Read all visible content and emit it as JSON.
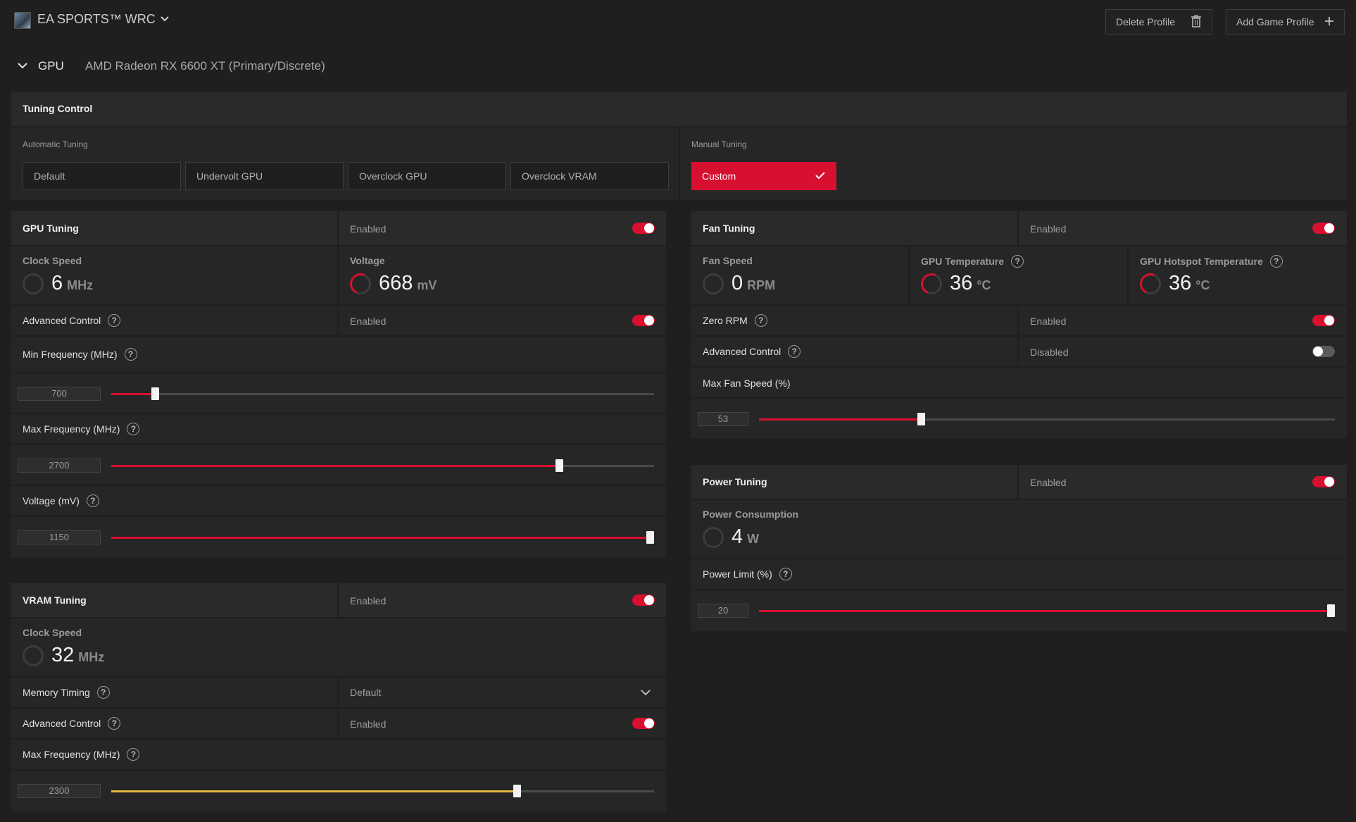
{
  "header": {
    "game_title": "EA SPORTS™ WRC",
    "delete_profile": "Delete Profile",
    "add_game_profile": "Add Game Profile",
    "gpu_label": "GPU",
    "gpu_name": "AMD Radeon RX 6600 XT (Primary/Discrete)"
  },
  "tuning_control": {
    "title": "Tuning Control",
    "automatic_label": "Automatic Tuning",
    "manual_label": "Manual Tuning",
    "presets": [
      "Default",
      "Undervolt GPU",
      "Overclock GPU",
      "Overclock VRAM"
    ],
    "custom": "Custom"
  },
  "gpu_tuning": {
    "title": "GPU Tuning",
    "state": "Enabled",
    "clock_title": "Clock Speed",
    "clock_value": "6",
    "clock_unit": "MHz",
    "voltage_title": "Voltage",
    "voltage_value": "668",
    "voltage_unit": "mV",
    "advanced_label": "Advanced Control",
    "advanced_state": "Enabled",
    "min_freq_label": "Min Frequency (MHz)",
    "min_freq_value": "700",
    "min_freq_fraction": 0.08,
    "max_freq_label": "Max Frequency (MHz)",
    "max_freq_value": "2700",
    "max_freq_fraction": 0.825,
    "voltage_label": "Voltage (mV)",
    "voltage_slider_value": "1150",
    "voltage_fraction": 0.992
  },
  "vram_tuning": {
    "title": "VRAM Tuning",
    "state": "Enabled",
    "clock_title": "Clock Speed",
    "clock_value": "32",
    "clock_unit": "MHz",
    "memory_timing_label": "Memory Timing",
    "memory_timing_value": "Default",
    "advanced_label": "Advanced Control",
    "advanced_state": "Enabled",
    "max_freq_label": "Max Frequency (MHz)",
    "max_freq_value": "2300",
    "max_freq_fraction": 0.747
  },
  "fan_tuning": {
    "title": "Fan Tuning",
    "state": "Enabled",
    "fan_speed_title": "Fan Speed",
    "fan_speed_value": "0",
    "fan_speed_unit": "RPM",
    "gpu_temp_title": "GPU Temperature",
    "gpu_temp_value": "36",
    "gpu_temp_unit": "°C",
    "hotspot_title": "GPU Hotspot Temperature",
    "hotspot_value": "36",
    "hotspot_unit": "°C",
    "zero_rpm_label": "Zero RPM",
    "zero_rpm_state": "Enabled",
    "advanced_label": "Advanced Control",
    "advanced_state": "Disabled",
    "max_fan_label": "Max Fan Speed (%)",
    "max_fan_value": "53",
    "max_fan_fraction": 0.281
  },
  "power_tuning": {
    "title": "Power Tuning",
    "state": "Enabled",
    "consumption_title": "Power Consumption",
    "consumption_value": "4",
    "consumption_unit": "W",
    "limit_label": "Power Limit (%)",
    "limit_value": "20",
    "limit_fraction": 0.994
  },
  "colors": {
    "accent": "#d7102f",
    "vram_accent": "#e2b83a"
  }
}
